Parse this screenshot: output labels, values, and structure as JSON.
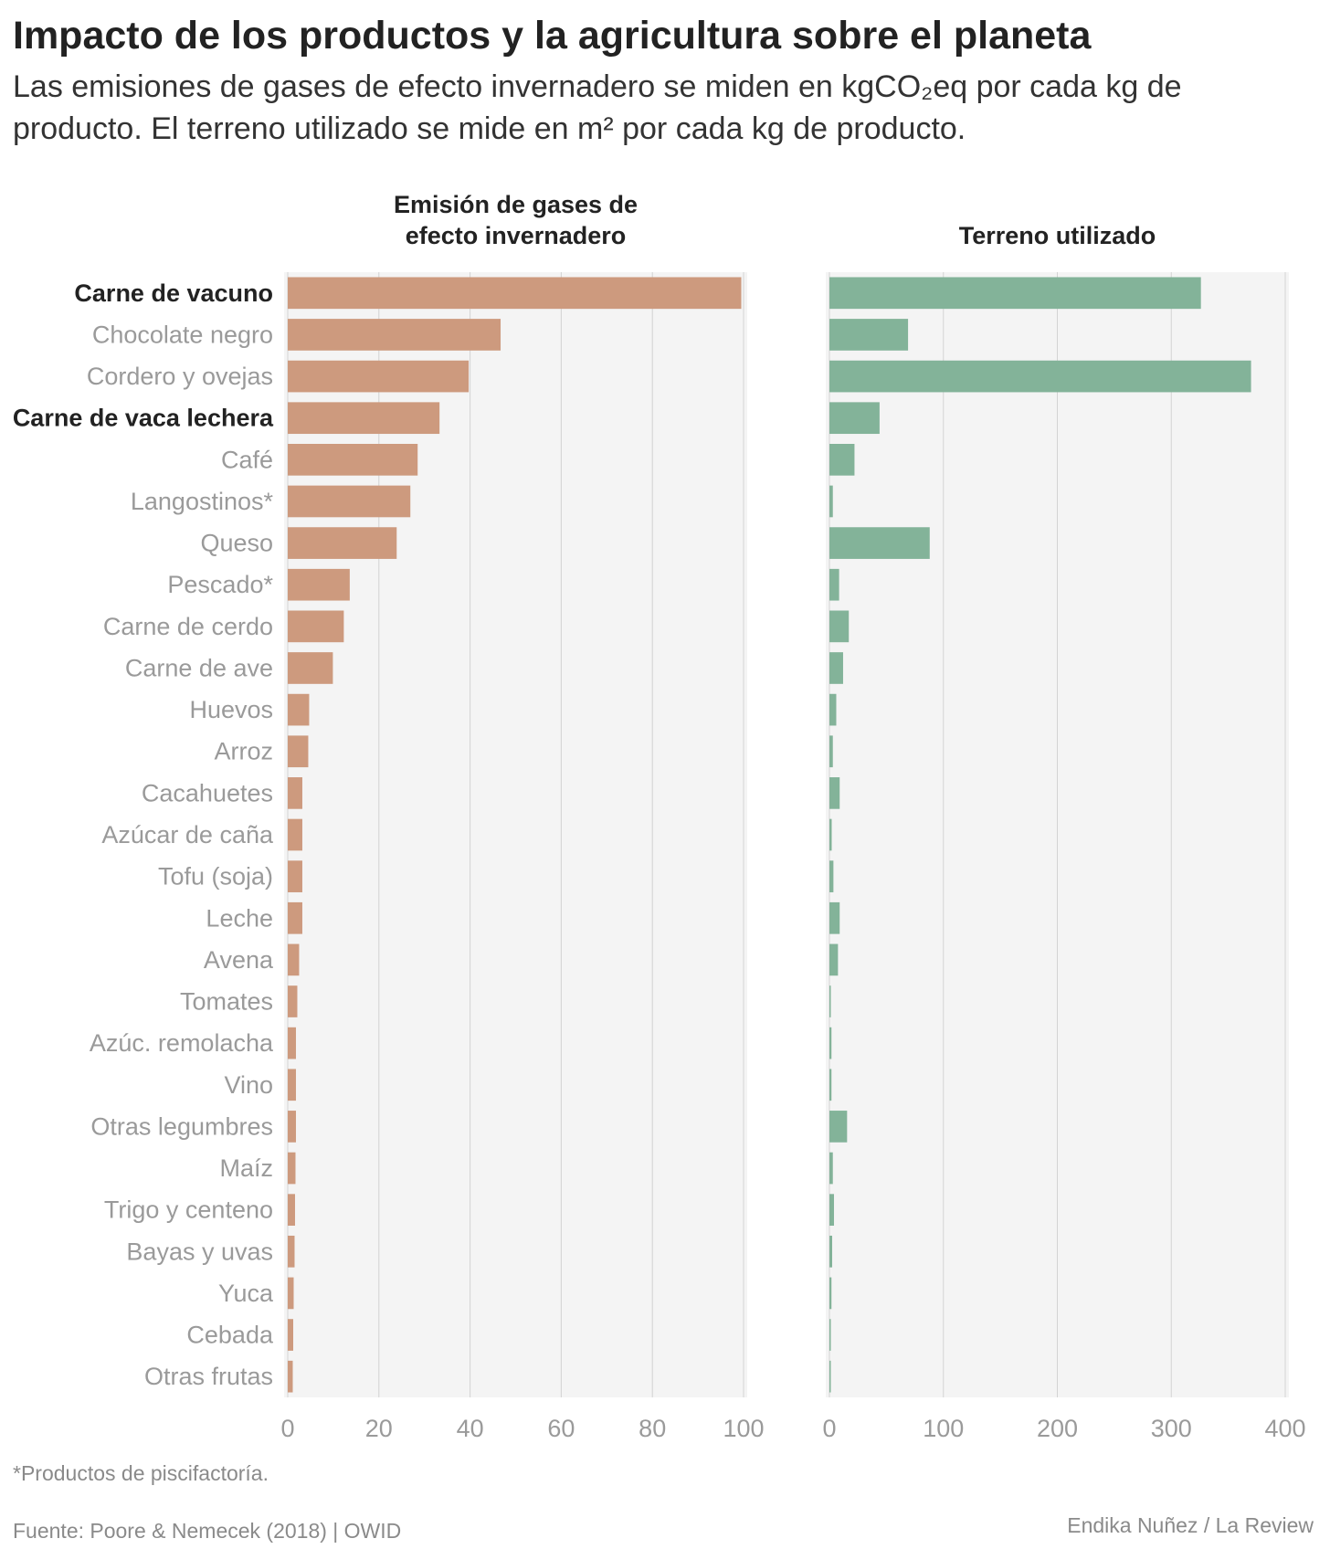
{
  "title": "Impacto de los productos y la agricultura sobre el planeta",
  "subtitle": "Las emisiones de gases de efecto invernadero se miden en kgCO₂eq por cada kg de producto. El terreno utilizado se mide en m² por cada kg de producto.",
  "footnote": "*Productos de piscifactoría.",
  "source": "Fuente: Poore & Nemecek (2018) | OWID",
  "credit": "Endika Nuñez / La Review",
  "colors": {
    "emissions": "#cd9a7e",
    "land": "#83b399",
    "panel_bg": "#f4f4f4",
    "highlight_label": "#222222",
    "label": "#9a9a9a"
  },
  "chart_data": {
    "type": "bar",
    "orientation": "horizontal",
    "categories": [
      "Carne de vacuno",
      "Chocolate negro",
      "Cordero y ovejas",
      "Carne de vaca lechera",
      "Café",
      "Langostinos*",
      "Queso",
      "Pescado*",
      "Carne de cerdo",
      "Carne de ave",
      "Huevos",
      "Arroz",
      "Cacahuetes",
      "Azúcar de caña",
      "Tofu (soja)",
      "Leche",
      "Avena",
      "Tomates",
      "Azúc. remolacha",
      "Vino",
      "Otras legumbres",
      "Maíz",
      "Trigo y centeno",
      "Bayas y uvas",
      "Yuca",
      "Cebada",
      "Otras frutas"
    ],
    "highlighted": [
      "Carne de vacuno",
      "Carne de vaca lechera"
    ],
    "panels": [
      {
        "title_lines": [
          "Emisión de gases de",
          "efecto invernadero"
        ],
        "values": [
          99.5,
          46.7,
          39.7,
          33.3,
          28.5,
          26.9,
          23.9,
          13.6,
          12.3,
          9.9,
          4.7,
          4.5,
          3.2,
          3.2,
          3.2,
          3.2,
          2.5,
          2.1,
          1.8,
          1.8,
          1.8,
          1.7,
          1.6,
          1.5,
          1.3,
          1.2,
          1.1
        ],
        "xlim": [
          0,
          100
        ],
        "ticks": [
          0,
          20,
          40,
          60,
          80,
          100
        ],
        "grid": true
      },
      {
        "title_lines": [
          "Terreno utilizado"
        ],
        "values": [
          326,
          69,
          370,
          44,
          22,
          3,
          88,
          8.5,
          17,
          12,
          6,
          3,
          9,
          2,
          3.5,
          9,
          7.5,
          0.8,
          1.8,
          1.8,
          15.5,
          3,
          4,
          2.4,
          1.8,
          1.2,
          1
        ],
        "xlim": [
          0,
          400
        ],
        "ticks": [
          0,
          100,
          200,
          300,
          400
        ],
        "grid": true
      }
    ]
  }
}
